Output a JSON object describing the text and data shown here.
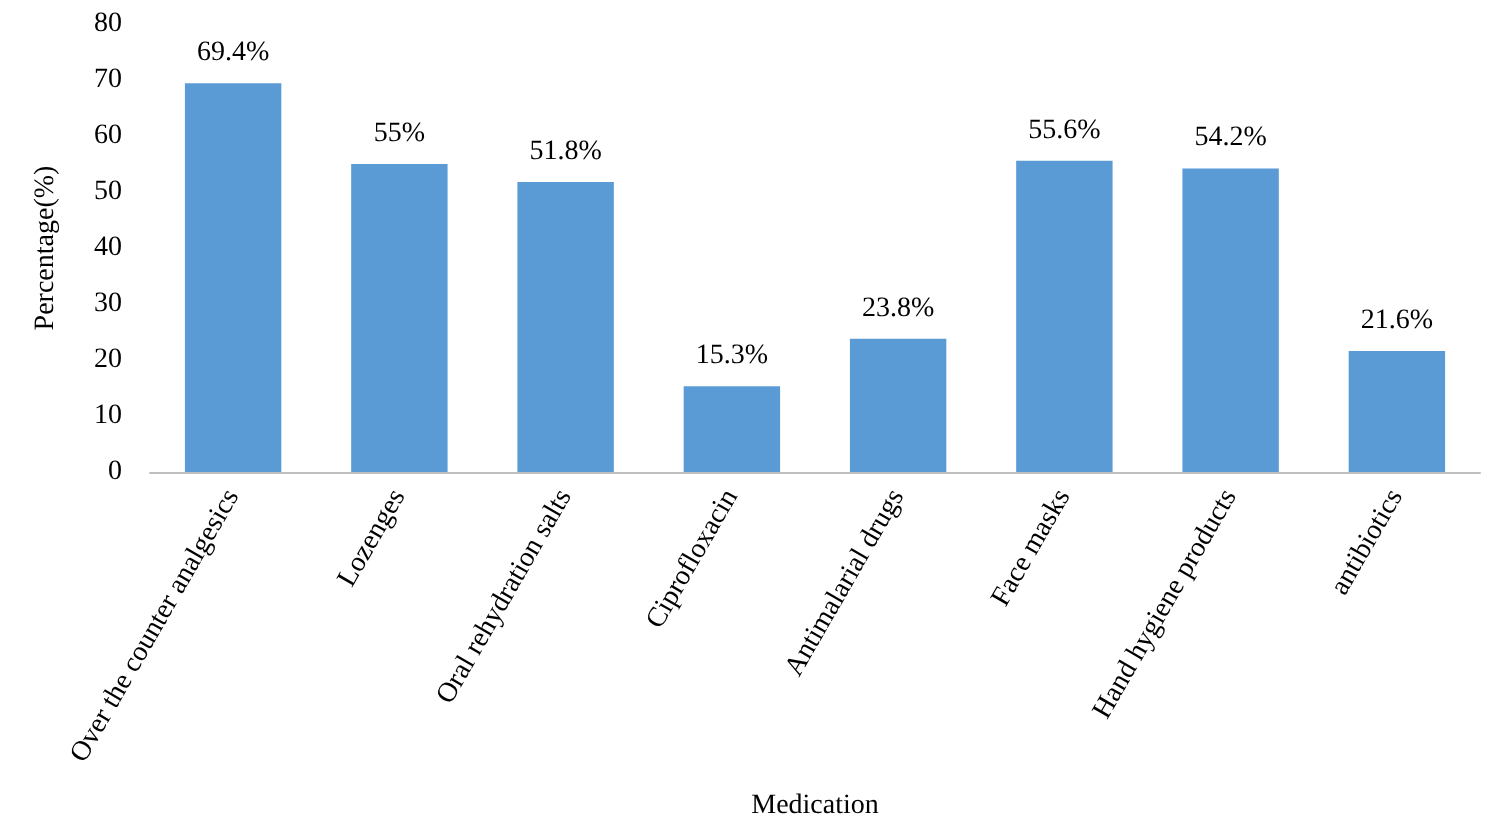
{
  "chart_data": {
    "type": "bar",
    "xlabel": "Medication",
    "ylabel": "Percentage(%)",
    "categories": [
      "Over the counter analgesics",
      "Lozenges",
      "Oral rehydration salts",
      "Ciprofloxacin",
      "Antimalarial drugs",
      "Face masks",
      "Hand hygiene products",
      "antibiotics"
    ],
    "values": [
      69.4,
      55,
      51.8,
      15.3,
      23.8,
      55.6,
      54.2,
      21.6
    ],
    "value_labels": [
      "69.4%",
      "55%",
      "51.8%",
      "15.3%",
      "23.8%",
      "55.6%",
      "54.2%",
      "21.6%"
    ],
    "color": "#5b9bd5",
    "ylim": [
      0,
      80
    ],
    "yticks": [
      0,
      10,
      20,
      30,
      40,
      50,
      60,
      70,
      80
    ],
    "grid": false
  }
}
